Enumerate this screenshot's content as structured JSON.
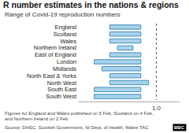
{
  "chart_data": {
    "type": "bar",
    "orientation": "horizontal",
    "title": "R number estimates in the nations & regions",
    "subtitle": "Range of Covid-19 reproduction numbers",
    "categories": [
      "England",
      "Scotland",
      "Wales",
      "Northern Ireland",
      "East of England",
      "London",
      "Midlands",
      "North East & Yorks",
      "North West",
      "South East",
      "South West"
    ],
    "values": [
      [
        0.7,
        0.9
      ],
      [
        0.7,
        0.9
      ],
      [
        0.7,
        0.9
      ],
      [
        0.75,
        0.85
      ],
      [
        0.7,
        0.9
      ],
      [
        0.6,
        0.9
      ],
      [
        0.65,
        0.9
      ],
      [
        0.7,
        0.9
      ],
      [
        0.7,
        0.95
      ],
      [
        0.6,
        0.9
      ],
      [
        0.6,
        0.9
      ]
    ],
    "color": "#a9d3ea",
    "xlim": [
      0.5,
      1.15
    ],
    "xticks": [
      {
        "value": 1,
        "label": "1.0"
      }
    ],
    "grid": true,
    "footnote": [
      "Figures for England and Wales published on 5 Feb, Scotland on 4 Feb,",
      "and Northern Ireland on 2 Feb"
    ],
    "source": "Source: DHSC, Scottish Government, NI Dept. of Health, Wales TAC",
    "credit": "BBC"
  }
}
